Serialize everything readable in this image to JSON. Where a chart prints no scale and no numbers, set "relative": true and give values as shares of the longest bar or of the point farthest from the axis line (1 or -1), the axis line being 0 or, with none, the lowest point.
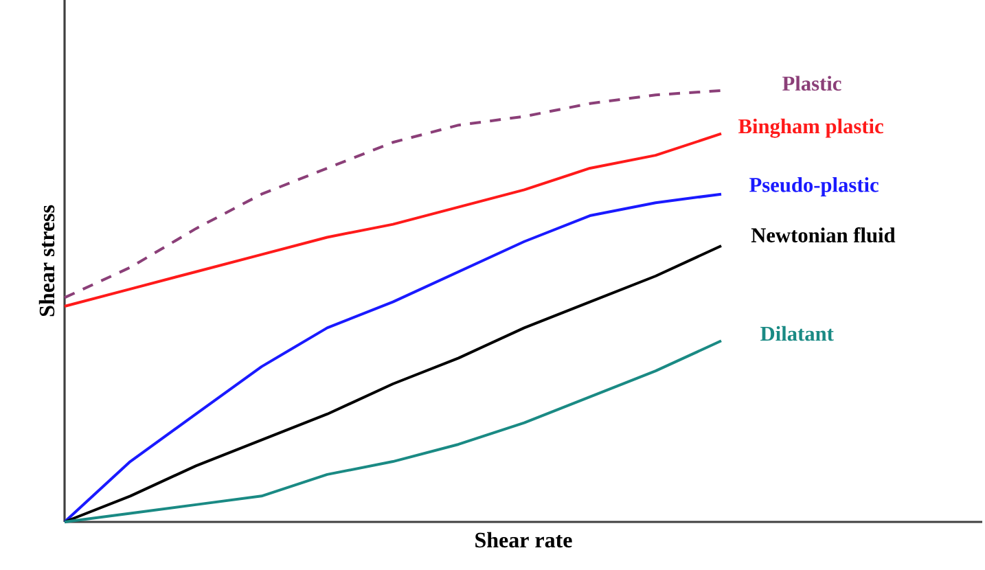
{
  "chart_data": {
    "type": "line",
    "relative": true,
    "xlabel": "Shear rate",
    "ylabel": "Shear stress",
    "categories": [
      null,
      null,
      null,
      null,
      null,
      null,
      null,
      null,
      null,
      null,
      null
    ],
    "series": [
      {
        "name": "Plastic",
        "color": "#8b3f78",
        "line_style": "dashed",
        "values": [
          0.52,
          0.59,
          0.68,
          0.76,
          0.82,
          0.88,
          0.92,
          0.94,
          0.97,
          0.99,
          1.0
        ]
      },
      {
        "name": "Bingham plastic",
        "color": "#ff1a1a",
        "values": [
          0.5,
          0.54,
          0.58,
          0.62,
          0.66,
          0.69,
          0.73,
          0.77,
          0.82,
          0.85,
          0.9
        ]
      },
      {
        "name": "Pseudo-plastic",
        "color": "#1a1aff",
        "values": [
          0,
          0.14,
          0.25,
          0.36,
          0.45,
          0.51,
          0.58,
          0.65,
          0.71,
          0.74,
          0.76
        ]
      },
      {
        "name": "Newtonian fluid",
        "color": "#000000",
        "values": [
          0,
          0.06,
          0.13,
          0.19,
          0.25,
          0.32,
          0.38,
          0.45,
          0.51,
          0.57,
          0.64
        ]
      },
      {
        "name": "Dilatant",
        "color": "#1a8a84",
        "values": [
          0,
          0.02,
          0.04,
          0.06,
          0.11,
          0.14,
          0.18,
          0.23,
          0.29,
          0.35,
          0.42
        ]
      }
    ]
  }
}
